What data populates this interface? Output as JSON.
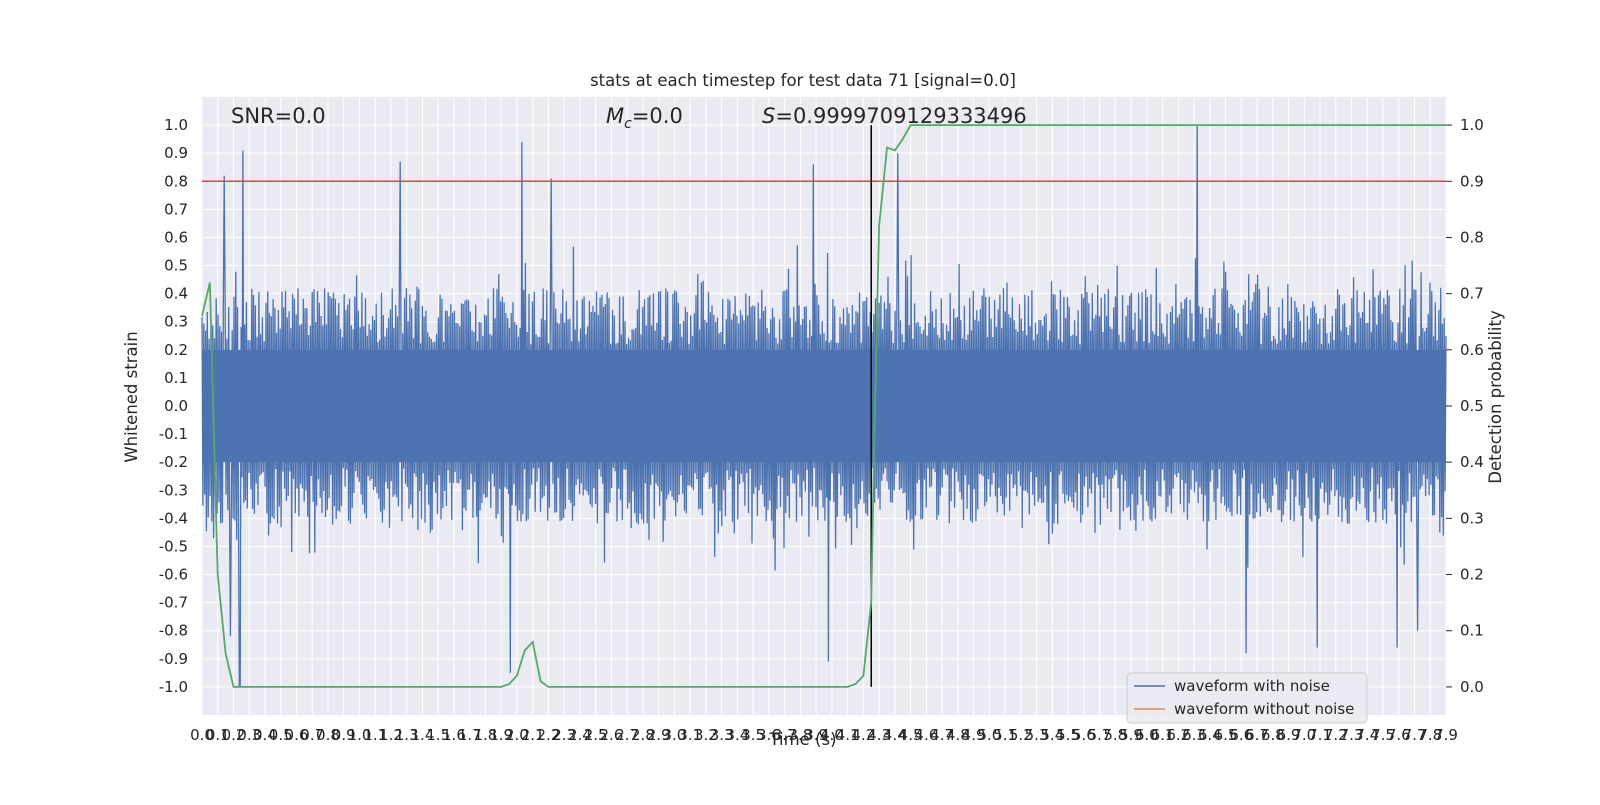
{
  "chart_data": {
    "type": "line",
    "title": "stats at each timestep for test data 71 [signal=0.0]",
    "xlabel": "Time (s)",
    "ylabel": "Whitened strain",
    "ylabel_right": "Detection probability",
    "xlim": [
      0.0,
      7.9
    ],
    "ylim": [
      -1.1,
      1.1
    ],
    "ylim_right": [
      -0.05,
      1.05
    ],
    "x_ticks": [
      "0.0",
      "0.1",
      "0.2",
      "0.3",
      "0.4",
      "0.5",
      "0.6",
      "0.7",
      "0.8",
      "0.9",
      "1.0",
      "1.1",
      "1.2",
      "1.3",
      "1.4",
      "1.5",
      "1.6",
      "1.7",
      "1.8",
      "1.9",
      "2.0",
      "2.1",
      "2.2",
      "2.3",
      "2.4",
      "2.5",
      "2.6",
      "2.7",
      "2.8",
      "2.9",
      "3.0",
      "3.1",
      "3.2",
      "3.3",
      "3.4",
      "3.5",
      "3.6",
      "3.7",
      "3.8",
      "3.9",
      "4.0",
      "4.1",
      "4.2",
      "4.3",
      "4.4",
      "4.5",
      "4.6",
      "4.7",
      "4.8",
      "4.9",
      "5.0",
      "5.1",
      "5.2",
      "5.3",
      "5.4",
      "5.5",
      "5.6",
      "5.7",
      "5.8",
      "5.9",
      "6.0",
      "6.1",
      "6.2",
      "6.3",
      "6.4",
      "6.5",
      "6.6",
      "6.7",
      "6.8",
      "6.9",
      "7.0",
      "7.1",
      "7.2",
      "7.3",
      "7.4",
      "7.5",
      "7.6",
      "7.7",
      "7.8",
      "7.9"
    ],
    "y_ticks": [
      "1.0",
      "0.9",
      "0.8",
      "0.7",
      "0.6",
      "0.5",
      "0.4",
      "0.3",
      "0.2",
      "0.1",
      "0.0",
      "-0.1",
      "-0.2",
      "-0.3",
      "-0.4",
      "-0.5",
      "-0.6",
      "-0.7",
      "-0.8",
      "-0.9",
      "-1.0"
    ],
    "y_ticks_right": [
      "1.0",
      "0.9",
      "0.8",
      "0.7",
      "0.6",
      "0.5",
      "0.4",
      "0.3",
      "0.2",
      "0.1",
      "0.0"
    ],
    "annotations": {
      "snr": "SNR=0.0",
      "mc_symbol": "M",
      "mc_sub": "c",
      "mc_value": "=0.0",
      "s_symbol": "S",
      "s_value": "=0.9999709129333496"
    },
    "threshold_line": {
      "y": 0.8,
      "color": "#c44e52"
    },
    "vertical_line": {
      "x": 4.25,
      "color": "#000000"
    },
    "series": [
      {
        "name": "waveform with noise",
        "axis": "left",
        "color": "#4c72b0",
        "description_values": "dense whitened strain noise, bulk amplitude within about ±0.45, peaks reaching about ±1.0",
        "envelope_peaks_x": [
          0.14,
          0.26,
          1.26,
          2.03,
          2.22,
          3.88,
          4.42,
          6.32
        ],
        "envelope_peaks_y": [
          0.82,
          0.91,
          0.87,
          0.94,
          0.81,
          0.86,
          0.9,
          1.0
        ],
        "envelope_troughs_x": [
          0.18,
          0.24,
          1.96,
          3.98,
          6.63,
          7.08,
          7.59,
          7.72
        ],
        "envelope_troughs_y": [
          -0.82,
          -1.0,
          -0.95,
          -0.91,
          -0.88,
          -0.86,
          -0.86,
          -0.8
        ]
      },
      {
        "name": "waveform without noise",
        "axis": "left",
        "color": "#dd8452",
        "values": []
      },
      {
        "name": "Detection probability",
        "axis": "right",
        "color": "#55a868",
        "x": [
          0.0,
          0.05,
          0.1,
          0.15,
          0.2,
          0.25,
          0.3,
          1.9,
          1.95,
          2.0,
          2.05,
          2.1,
          2.15,
          2.2,
          2.25,
          4.1,
          4.15,
          4.2,
          4.25,
          4.27,
          4.3,
          4.35,
          4.4,
          4.45,
          4.5,
          4.55,
          7.9
        ],
        "values": [
          0.66,
          0.72,
          0.2,
          0.06,
          0.0,
          0.0,
          0.0,
          0.0,
          0.005,
          0.02,
          0.065,
          0.08,
          0.01,
          0.0,
          0.0,
          0.0,
          0.005,
          0.02,
          0.15,
          0.45,
          0.82,
          0.96,
          0.955,
          0.975,
          1.0,
          1.0,
          1.0
        ]
      }
    ],
    "legend": {
      "placement": "lower-right",
      "entries": [
        {
          "label": "waveform with noise",
          "color": "#4c72b0"
        },
        {
          "label": "waveform without noise",
          "color": "#dd8452"
        }
      ]
    },
    "grid": true,
    "style": {
      "background": "#eaeaf2",
      "grid_color": "#ffffff"
    }
  }
}
